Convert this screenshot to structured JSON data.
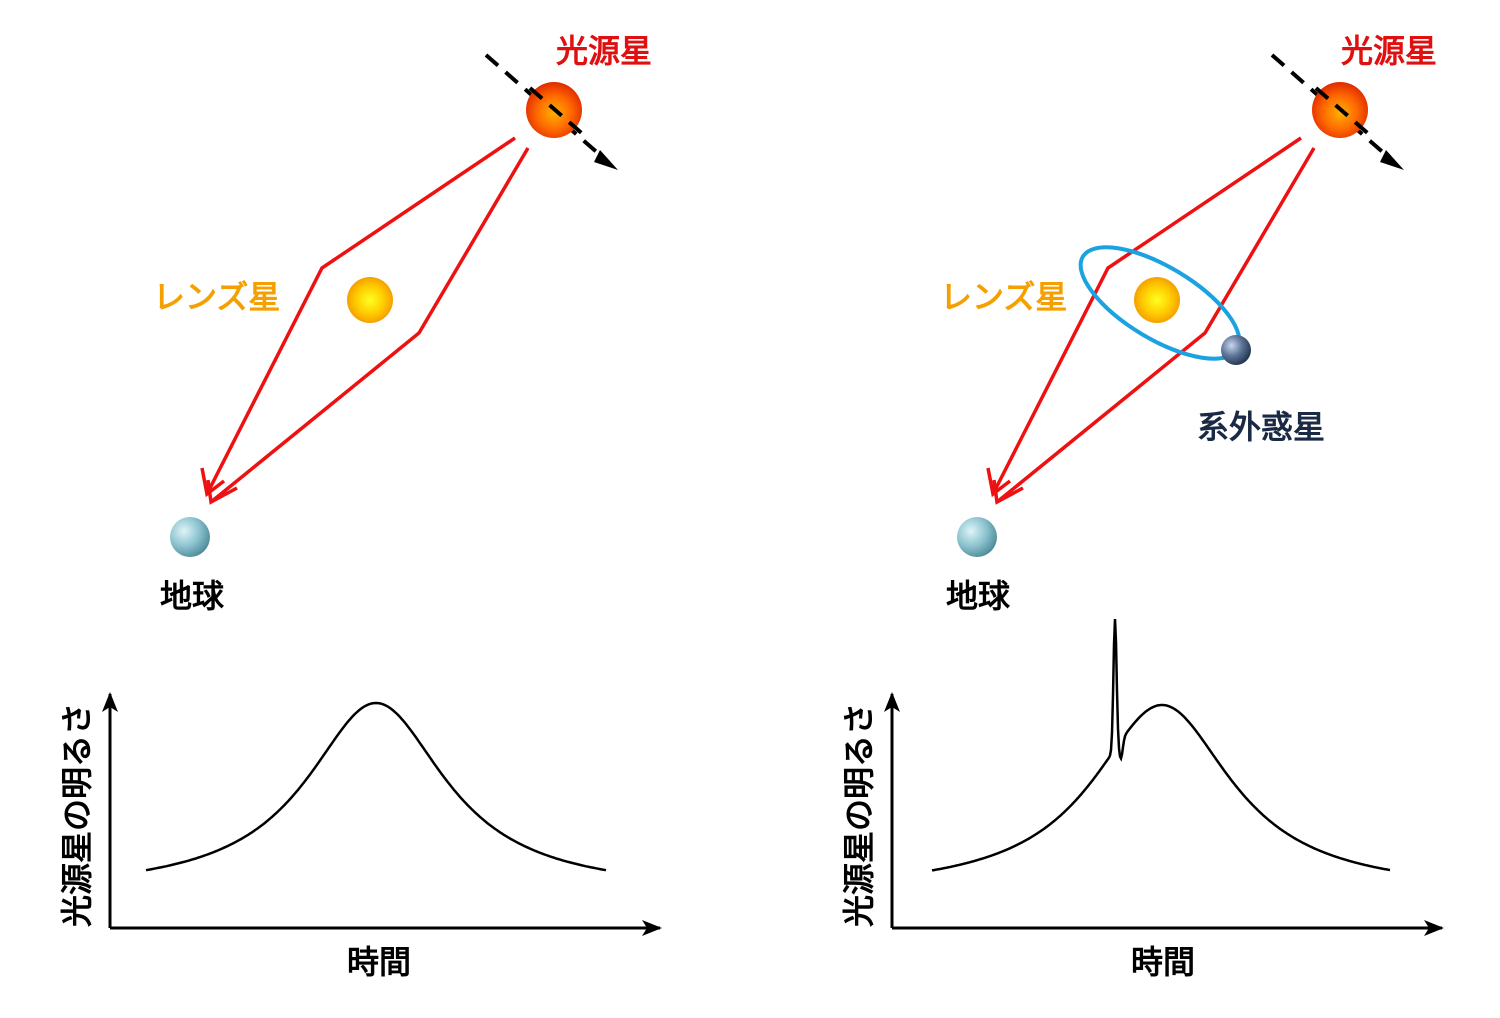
{
  "colors": {
    "ray": "#ee1111",
    "source_label": "#e01010",
    "lens_label": "#f5a000",
    "planet_label": "#1a2a44",
    "orbit": "#1aa3e0",
    "curve": "#000000",
    "text": "#000000"
  },
  "left_panel": {
    "source_label": "光源星",
    "lens_label": "レンズ星",
    "earth_label": "地球",
    "chart": {
      "ylabel": "光源星の明るさ",
      "xlabel": "時間"
    }
  },
  "right_panel": {
    "source_label": "光源星",
    "lens_label": "レンズ星",
    "planet_label": "系外惑星",
    "earth_label": "地球",
    "chart": {
      "ylabel": "光源星の明るさ",
      "xlabel": "時間"
    }
  },
  "icons": [
    "source-star-icon",
    "lens-star-icon",
    "earth-icon",
    "exoplanet-icon",
    "motion-arrow-icon"
  ]
}
